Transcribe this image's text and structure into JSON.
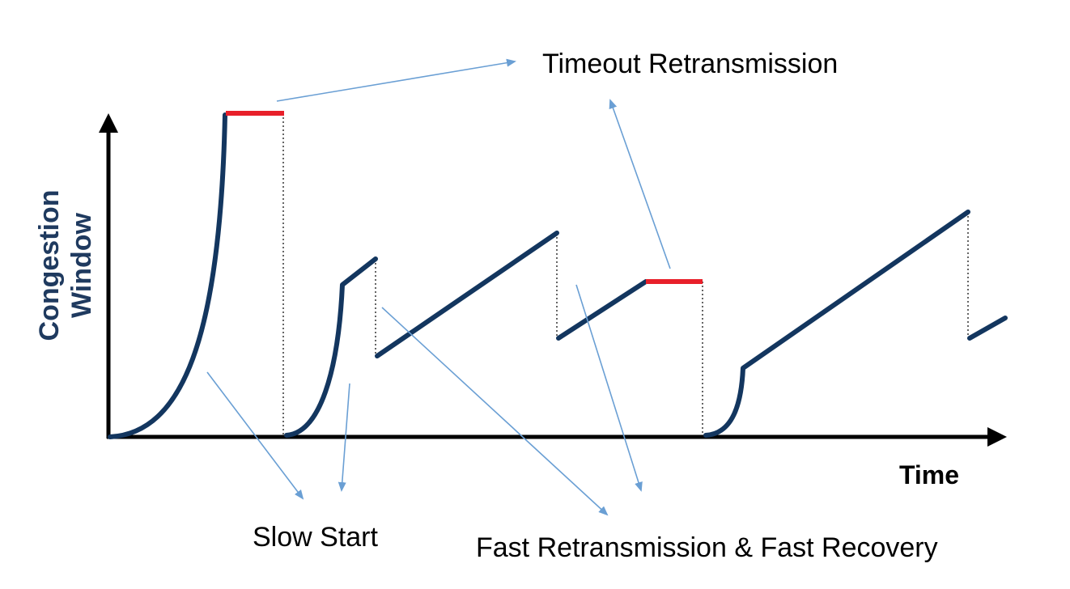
{
  "diagram": {
    "y_axis_label_line1": "Congestion",
    "y_axis_label_line2": "Window",
    "x_axis_label": "Time",
    "annotations": {
      "timeout_retransmission": "Timeout Retransmission",
      "slow_start": "Slow Start",
      "fast_retransmission_recovery": "Fast Retransmission & Fast Recovery"
    },
    "colors": {
      "curve": "#13365f",
      "timeout_marker": "#e8202a",
      "arrow": "#6a9fd4",
      "axis": "#000000",
      "axis_title": "#1f3a5f"
    }
  }
}
